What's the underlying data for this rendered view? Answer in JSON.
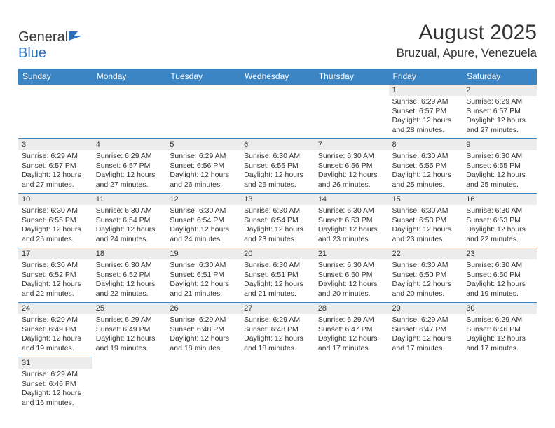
{
  "logo": {
    "text1": "General",
    "text2": "Blue"
  },
  "title": "August 2025",
  "location": "Bruzual, Apure, Venezuela",
  "colors": {
    "header_bg": "#3b84c4",
    "header_text": "#ffffff",
    "daynum_bg": "#ececec",
    "border": "#3b84c4",
    "text": "#333333",
    "logo_blue": "#2d6fb8"
  },
  "fonts": {
    "title_size": 30,
    "location_size": 17,
    "header_size": 12,
    "daynum_size": 11,
    "body_size": 10.5
  },
  "day_headers": [
    "Sunday",
    "Monday",
    "Tuesday",
    "Wednesday",
    "Thursday",
    "Friday",
    "Saturday"
  ],
  "weeks": [
    [
      null,
      null,
      null,
      null,
      null,
      {
        "n": "1",
        "sr": "6:29 AM",
        "ss": "6:57 PM",
        "dl": "12 hours and 28 minutes."
      },
      {
        "n": "2",
        "sr": "6:29 AM",
        "ss": "6:57 PM",
        "dl": "12 hours and 27 minutes."
      }
    ],
    [
      {
        "n": "3",
        "sr": "6:29 AM",
        "ss": "6:57 PM",
        "dl": "12 hours and 27 minutes."
      },
      {
        "n": "4",
        "sr": "6:29 AM",
        "ss": "6:57 PM",
        "dl": "12 hours and 27 minutes."
      },
      {
        "n": "5",
        "sr": "6:29 AM",
        "ss": "6:56 PM",
        "dl": "12 hours and 26 minutes."
      },
      {
        "n": "6",
        "sr": "6:30 AM",
        "ss": "6:56 PM",
        "dl": "12 hours and 26 minutes."
      },
      {
        "n": "7",
        "sr": "6:30 AM",
        "ss": "6:56 PM",
        "dl": "12 hours and 26 minutes."
      },
      {
        "n": "8",
        "sr": "6:30 AM",
        "ss": "6:55 PM",
        "dl": "12 hours and 25 minutes."
      },
      {
        "n": "9",
        "sr": "6:30 AM",
        "ss": "6:55 PM",
        "dl": "12 hours and 25 minutes."
      }
    ],
    [
      {
        "n": "10",
        "sr": "6:30 AM",
        "ss": "6:55 PM",
        "dl": "12 hours and 25 minutes."
      },
      {
        "n": "11",
        "sr": "6:30 AM",
        "ss": "6:54 PM",
        "dl": "12 hours and 24 minutes."
      },
      {
        "n": "12",
        "sr": "6:30 AM",
        "ss": "6:54 PM",
        "dl": "12 hours and 24 minutes."
      },
      {
        "n": "13",
        "sr": "6:30 AM",
        "ss": "6:54 PM",
        "dl": "12 hours and 23 minutes."
      },
      {
        "n": "14",
        "sr": "6:30 AM",
        "ss": "6:53 PM",
        "dl": "12 hours and 23 minutes."
      },
      {
        "n": "15",
        "sr": "6:30 AM",
        "ss": "6:53 PM",
        "dl": "12 hours and 23 minutes."
      },
      {
        "n": "16",
        "sr": "6:30 AM",
        "ss": "6:53 PM",
        "dl": "12 hours and 22 minutes."
      }
    ],
    [
      {
        "n": "17",
        "sr": "6:30 AM",
        "ss": "6:52 PM",
        "dl": "12 hours and 22 minutes."
      },
      {
        "n": "18",
        "sr": "6:30 AM",
        "ss": "6:52 PM",
        "dl": "12 hours and 22 minutes."
      },
      {
        "n": "19",
        "sr": "6:30 AM",
        "ss": "6:51 PM",
        "dl": "12 hours and 21 minutes."
      },
      {
        "n": "20",
        "sr": "6:30 AM",
        "ss": "6:51 PM",
        "dl": "12 hours and 21 minutes."
      },
      {
        "n": "21",
        "sr": "6:30 AM",
        "ss": "6:50 PM",
        "dl": "12 hours and 20 minutes."
      },
      {
        "n": "22",
        "sr": "6:30 AM",
        "ss": "6:50 PM",
        "dl": "12 hours and 20 minutes."
      },
      {
        "n": "23",
        "sr": "6:30 AM",
        "ss": "6:50 PM",
        "dl": "12 hours and 19 minutes."
      }
    ],
    [
      {
        "n": "24",
        "sr": "6:29 AM",
        "ss": "6:49 PM",
        "dl": "12 hours and 19 minutes."
      },
      {
        "n": "25",
        "sr": "6:29 AM",
        "ss": "6:49 PM",
        "dl": "12 hours and 19 minutes."
      },
      {
        "n": "26",
        "sr": "6:29 AM",
        "ss": "6:48 PM",
        "dl": "12 hours and 18 minutes."
      },
      {
        "n": "27",
        "sr": "6:29 AM",
        "ss": "6:48 PM",
        "dl": "12 hours and 18 minutes."
      },
      {
        "n": "28",
        "sr": "6:29 AM",
        "ss": "6:47 PM",
        "dl": "12 hours and 17 minutes."
      },
      {
        "n": "29",
        "sr": "6:29 AM",
        "ss": "6:47 PM",
        "dl": "12 hours and 17 minutes."
      },
      {
        "n": "30",
        "sr": "6:29 AM",
        "ss": "6:46 PM",
        "dl": "12 hours and 17 minutes."
      }
    ],
    [
      {
        "n": "31",
        "sr": "6:29 AM",
        "ss": "6:46 PM",
        "dl": "12 hours and 16 minutes."
      },
      null,
      null,
      null,
      null,
      null,
      null
    ]
  ],
  "labels": {
    "sunrise": "Sunrise: ",
    "sunset": "Sunset: ",
    "daylight": "Daylight: "
  }
}
